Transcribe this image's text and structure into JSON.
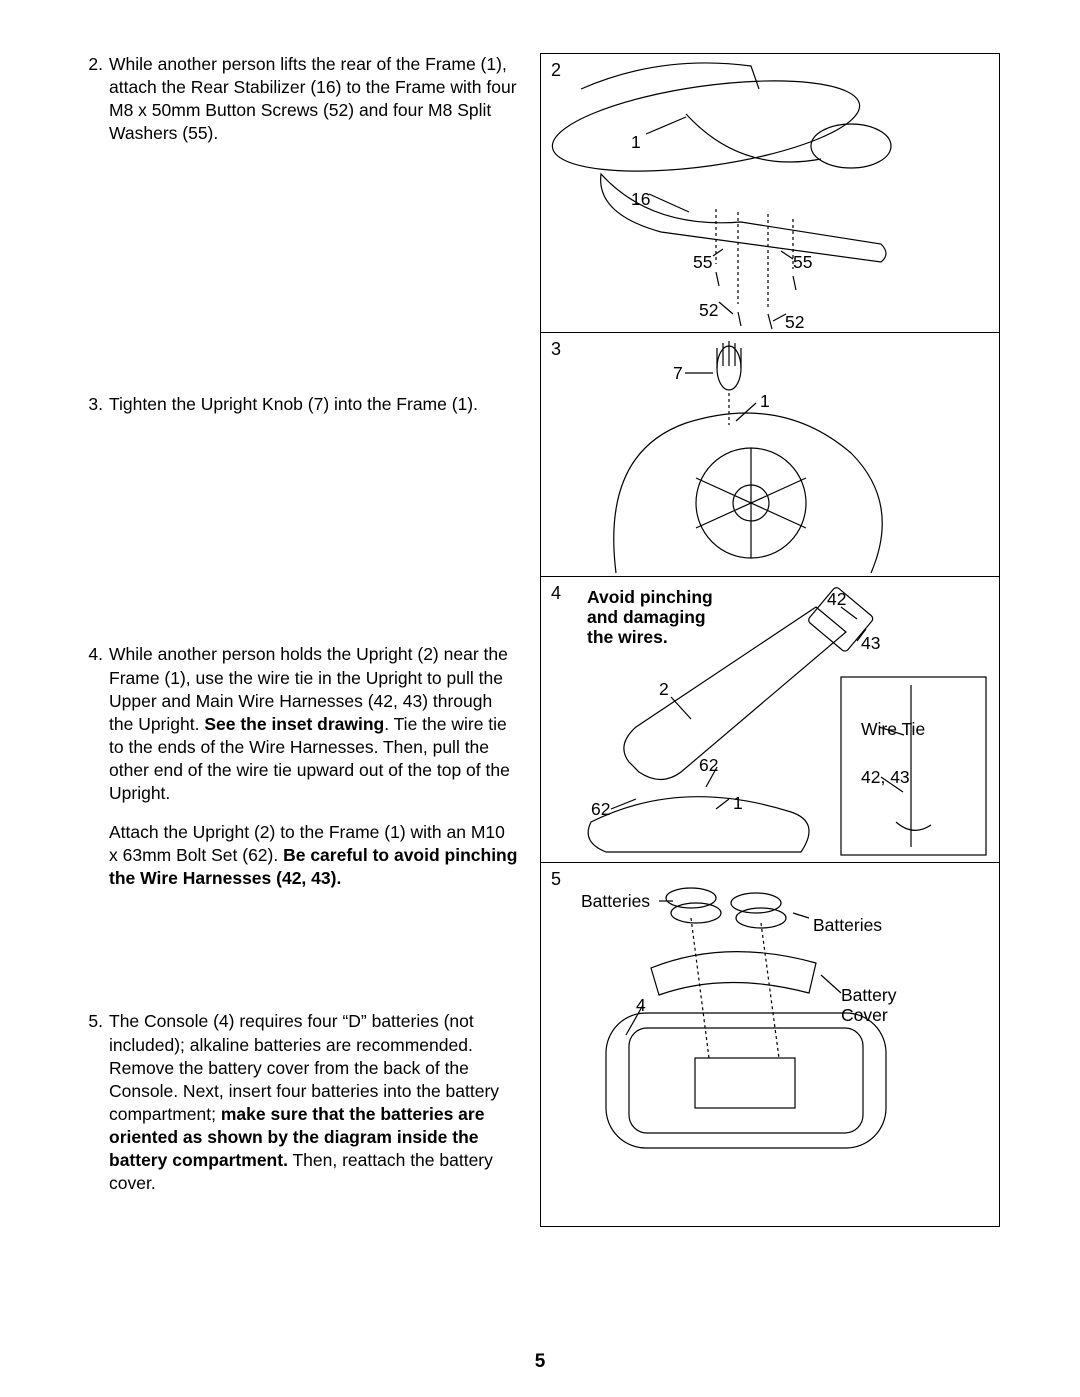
{
  "page_number": "5",
  "steps": [
    {
      "num": "2.",
      "paragraphs": [
        {
          "segments": [
            {
              "t": "While another person lifts the rear of the Frame (1), attach the Rear Stabilizer (16) to the Frame with four M8 x 50mm Button Screws (52) and four M8 Split Washers (55).",
              "b": false
            }
          ]
        }
      ],
      "spacer_after": "spacer2"
    },
    {
      "num": "3.",
      "paragraphs": [
        {
          "segments": [
            {
              "t": "Tighten the Upright Knob (7) into the Frame (1).",
              "b": false
            }
          ]
        }
      ],
      "spacer_after": "spacer3"
    },
    {
      "num": "4.",
      "paragraphs": [
        {
          "segments": [
            {
              "t": "While another person holds the Upright (2) near the Frame (1), use the wire tie in the Upright to pull the Upper and Main Wire Harnesses (42, 43) through the Upright. ",
              "b": false
            },
            {
              "t": "See the inset drawing",
              "b": true
            },
            {
              "t": ". Tie the wire tie to the ends of the Wire Harnesses. Then, pull the other end of the wire tie upward out of the top of the Upright.",
              "b": false
            }
          ]
        },
        {
          "segments": [
            {
              "t": "Attach the Upright (2) to the Frame (1) with an M10 x 63mm Bolt Set (62). ",
              "b": false
            },
            {
              "t": "Be careful to avoid pinching the Wire Harnesses (42, 43).",
              "b": true
            }
          ]
        }
      ],
      "spacer_after": "spacer4"
    },
    {
      "num": "5.",
      "paragraphs": [
        {
          "segments": [
            {
              "t": "The Console (4) requires four “D” batteries (not includ­ed); alkaline batteries are recommended. Remove the battery cover from the back of the Console. Next, insert four batteries into the battery compartment; ",
              "b": false
            },
            {
              "t": "make sure that the batteries are oriented as shown by the diagram inside the battery compartment.",
              "b": true
            },
            {
              "t": " Then, reattach the battery cover.",
              "b": false
            }
          ]
        }
      ],
      "spacer_after": null
    }
  ],
  "panels": {
    "p2": {
      "num": "2",
      "labels": {
        "l1": "1",
        "l16": "16",
        "l55a": "55",
        "l55b": "55",
        "l52a": "52",
        "l52b": "52"
      }
    },
    "p3": {
      "num": "3",
      "labels": {
        "l7": "7",
        "l1": "1"
      }
    },
    "p4": {
      "num": "4",
      "warn_l1": "Avoid pinching",
      "warn_l2": "and damaging",
      "warn_l3": "the wires.",
      "labels": {
        "l42": "42",
        "l43": "43",
        "l2": "2",
        "l62a": "62",
        "l62b": "62",
        "l1": "1",
        "wiretie": "Wire Tie",
        "l4243": "42, 43"
      }
    },
    "p5": {
      "num": "5",
      "labels": {
        "bat_l": "Batteries",
        "bat_r": "Batteries",
        "l4": "4",
        "cover_l1": "Battery",
        "cover_l2": "Cover"
      }
    }
  }
}
